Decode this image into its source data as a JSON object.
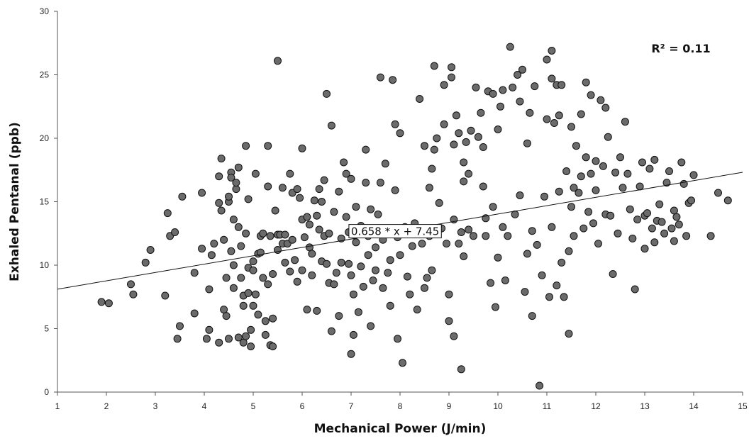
{
  "chart_data": {
    "type": "scatter",
    "xlabel": "Mechanical Power (J/min)",
    "ylabel": "Exhaled Pentanal (ppb)",
    "xlim": [
      1,
      15
    ],
    "ylim": [
      0,
      30
    ],
    "x_ticks": [
      1,
      2,
      3,
      4,
      5,
      6,
      7,
      8,
      9,
      10,
      11,
      12,
      13,
      14,
      15
    ],
    "y_ticks": [
      0,
      5,
      10,
      15,
      20,
      25,
      30
    ],
    "x_tick_labels": [
      "1",
      "2",
      "3",
      "4",
      "5",
      "6",
      "7",
      "8",
      "9",
      "10",
      "11",
      "12",
      "13",
      "14",
      "15"
    ],
    "y_tick_labels": [
      "0",
      "5",
      "10",
      "15",
      "20",
      "25",
      "30"
    ],
    "grid": false,
    "r2_label": "R² = 0.11",
    "fit_equation_label": "0.658 * x + 7.45",
    "fit_line": {
      "slope": 0.658,
      "intercept": 7.45
    },
    "marker_fill": "#6b6b6b",
    "marker_stroke": "#111111",
    "points": [
      [
        1.9,
        7.1
      ],
      [
        2.05,
        7.0
      ],
      [
        2.5,
        8.5
      ],
      [
        2.55,
        7.7
      ],
      [
        2.8,
        10.2
      ],
      [
        2.9,
        11.2
      ],
      [
        3.2,
        7.6
      ],
      [
        3.25,
        14.1
      ],
      [
        3.3,
        12.3
      ],
      [
        3.4,
        12.6
      ],
      [
        3.45,
        4.2
      ],
      [
        3.5,
        5.2
      ],
      [
        3.55,
        15.4
      ],
      [
        3.8,
        6.2
      ],
      [
        3.8,
        9.4
      ],
      [
        3.95,
        15.7
      ],
      [
        3.95,
        11.3
      ],
      [
        4.05,
        4.2
      ],
      [
        4.1,
        4.9
      ],
      [
        4.1,
        8.1
      ],
      [
        4.15,
        10.8
      ],
      [
        4.2,
        11.7
      ],
      [
        4.3,
        3.9
      ],
      [
        4.3,
        14.9
      ],
      [
        4.3,
        17.0
      ],
      [
        4.35,
        18.4
      ],
      [
        4.35,
        14.3
      ],
      [
        4.4,
        6.5
      ],
      [
        4.4,
        12.0
      ],
      [
        4.45,
        6.0
      ],
      [
        4.45,
        9.0
      ],
      [
        4.5,
        4.2
      ],
      [
        4.5,
        15.0
      ],
      [
        4.5,
        15.4
      ],
      [
        4.55,
        17.3
      ],
      [
        4.55,
        16.9
      ],
      [
        4.55,
        11.1
      ],
      [
        4.6,
        8.2
      ],
      [
        4.6,
        13.6
      ],
      [
        4.6,
        10.0
      ],
      [
        4.65,
        16.0
      ],
      [
        4.65,
        16.5
      ],
      [
        4.7,
        13.0
      ],
      [
        4.7,
        17.7
      ],
      [
        4.7,
        4.3
      ],
      [
        4.75,
        11.5
      ],
      [
        4.75,
        9.0
      ],
      [
        4.8,
        3.9
      ],
      [
        4.8,
        7.6
      ],
      [
        4.8,
        6.8
      ],
      [
        4.85,
        12.5
      ],
      [
        4.85,
        19.4
      ],
      [
        4.85,
        4.4
      ],
      [
        4.9,
        9.8
      ],
      [
        4.9,
        7.8
      ],
      [
        4.9,
        15.2
      ],
      [
        4.95,
        4.9
      ],
      [
        4.95,
        3.6
      ],
      [
        5.0,
        10.3
      ],
      [
        5.0,
        9.6
      ],
      [
        5.0,
        6.8
      ],
      [
        5.05,
        17.2
      ],
      [
        5.05,
        7.7
      ],
      [
        5.1,
        6.1
      ],
      [
        5.1,
        10.9
      ],
      [
        5.15,
        12.3
      ],
      [
        5.15,
        11.0
      ],
      [
        5.2,
        9.0
      ],
      [
        5.2,
        12.5
      ],
      [
        5.25,
        4.5
      ],
      [
        5.25,
        5.6
      ],
      [
        5.3,
        19.4
      ],
      [
        5.3,
        8.5
      ],
      [
        5.3,
        16.2
      ],
      [
        5.35,
        3.7
      ],
      [
        5.35,
        12.3
      ],
      [
        5.4,
        3.6
      ],
      [
        5.4,
        5.8
      ],
      [
        5.4,
        9.3
      ],
      [
        5.45,
        14.3
      ],
      [
        5.5,
        12.4
      ],
      [
        5.5,
        11.2
      ],
      [
        5.5,
        26.1
      ],
      [
        5.55,
        12.4
      ],
      [
        5.6,
        16.1
      ],
      [
        5.6,
        11.7
      ],
      [
        5.65,
        10.2
      ],
      [
        5.65,
        12.4
      ],
      [
        5.7,
        11.7
      ],
      [
        5.75,
        9.5
      ],
      [
        5.75,
        17.2
      ],
      [
        5.8,
        15.7
      ],
      [
        5.8,
        12.0
      ],
      [
        5.85,
        10.4
      ],
      [
        5.9,
        16.0
      ],
      [
        5.9,
        8.7
      ],
      [
        5.95,
        15.3
      ],
      [
        6.0,
        19.2
      ],
      [
        6.0,
        13.6
      ],
      [
        6.0,
        9.6
      ],
      [
        6.05,
        12.2
      ],
      [
        6.1,
        13.8
      ],
      [
        6.1,
        6.5
      ],
      [
        6.15,
        13.2
      ],
      [
        6.15,
        11.4
      ],
      [
        6.2,
        10.9
      ],
      [
        6.2,
        9.2
      ],
      [
        6.25,
        15.1
      ],
      [
        6.3,
        13.9
      ],
      [
        6.3,
        6.4
      ],
      [
        6.35,
        16.0
      ],
      [
        6.35,
        12.8
      ],
      [
        6.4,
        15.0
      ],
      [
        6.4,
        10.3
      ],
      [
        6.45,
        16.7
      ],
      [
        6.45,
        12.3
      ],
      [
        6.5,
        23.5
      ],
      [
        6.5,
        10.1
      ],
      [
        6.55,
        8.6
      ],
      [
        6.55,
        12.5
      ],
      [
        6.6,
        21.0
      ],
      [
        6.6,
        4.8
      ],
      [
        6.65,
        14.2
      ],
      [
        6.65,
        8.5
      ],
      [
        6.7,
        9.4
      ],
      [
        6.75,
        15.8
      ],
      [
        6.75,
        6.0
      ],
      [
        6.8,
        12.1
      ],
      [
        6.8,
        10.2
      ],
      [
        6.85,
        18.1
      ],
      [
        6.9,
        17.2
      ],
      [
        6.9,
        13.8
      ],
      [
        6.95,
        12.6
      ],
      [
        6.95,
        10.1
      ],
      [
        7.0,
        16.8
      ],
      [
        7.0,
        9.2
      ],
      [
        7.0,
        3.0
      ],
      [
        7.05,
        4.5
      ],
      [
        7.05,
        7.7
      ],
      [
        7.1,
        14.6
      ],
      [
        7.1,
        11.8
      ],
      [
        7.15,
        6.3
      ],
      [
        7.2,
        13.1
      ],
      [
        7.2,
        9.9
      ],
      [
        7.25,
        8.3
      ],
      [
        7.3,
        19.1
      ],
      [
        7.3,
        16.5
      ],
      [
        7.35,
        12.3
      ],
      [
        7.35,
        10.8
      ],
      [
        7.4,
        14.4
      ],
      [
        7.4,
        5.2
      ],
      [
        7.45,
        8.8
      ],
      [
        7.5,
        11.4
      ],
      [
        7.5,
        9.6
      ],
      [
        7.55,
        14.0
      ],
      [
        7.6,
        24.8
      ],
      [
        7.6,
        16.5
      ],
      [
        7.65,
        12.0
      ],
      [
        7.65,
        8.2
      ],
      [
        7.7,
        18.0
      ],
      [
        7.75,
        9.4
      ],
      [
        7.8,
        10.4
      ],
      [
        7.8,
        6.8
      ],
      [
        7.85,
        24.6
      ],
      [
        7.9,
        21.1
      ],
      [
        7.9,
        15.9
      ],
      [
        7.95,
        12.2
      ],
      [
        7.95,
        4.2
      ],
      [
        8.0,
        20.4
      ],
      [
        8.0,
        10.8
      ],
      [
        8.05,
        2.3
      ],
      [
        8.1,
        13.0
      ],
      [
        8.15,
        9.1
      ],
      [
        8.2,
        7.7
      ],
      [
        8.25,
        11.5
      ],
      [
        8.3,
        13.3
      ],
      [
        8.35,
        6.5
      ],
      [
        8.4,
        23.1
      ],
      [
        8.45,
        11.7
      ],
      [
        8.5,
        19.4
      ],
      [
        8.5,
        8.2
      ],
      [
        8.55,
        9.0
      ],
      [
        8.6,
        16.1
      ],
      [
        8.6,
        12.3
      ],
      [
        8.65,
        17.6
      ],
      [
        8.65,
        9.6
      ],
      [
        8.7,
        25.7
      ],
      [
        8.7,
        19.1
      ],
      [
        8.75,
        20.0
      ],
      [
        8.8,
        14.9
      ],
      [
        8.85,
        12.9
      ],
      [
        8.9,
        24.2
      ],
      [
        8.9,
        21.1
      ],
      [
        8.95,
        11.7
      ],
      [
        9.0,
        5.6
      ],
      [
        9.0,
        7.7
      ],
      [
        9.05,
        25.6
      ],
      [
        9.05,
        24.8
      ],
      [
        9.1,
        19.5
      ],
      [
        9.1,
        13.6
      ],
      [
        9.1,
        4.4
      ],
      [
        9.15,
        21.8
      ],
      [
        9.2,
        20.4
      ],
      [
        9.2,
        11.7
      ],
      [
        9.25,
        1.8
      ],
      [
        9.25,
        12.6
      ],
      [
        9.3,
        18.1
      ],
      [
        9.3,
        16.6
      ],
      [
        9.3,
        10.7
      ],
      [
        9.35,
        19.7
      ],
      [
        9.4,
        17.2
      ],
      [
        9.4,
        12.8
      ],
      [
        9.45,
        20.6
      ],
      [
        9.5,
        12.3
      ],
      [
        9.55,
        24.0
      ],
      [
        9.6,
        20.1
      ],
      [
        9.65,
        22.0
      ],
      [
        9.7,
        16.2
      ],
      [
        9.7,
        19.3
      ],
      [
        9.75,
        12.3
      ],
      [
        9.75,
        13.7
      ],
      [
        9.8,
        23.7
      ],
      [
        9.85,
        8.6
      ],
      [
        9.9,
        23.5
      ],
      [
        9.9,
        14.6
      ],
      [
        9.95,
        6.7
      ],
      [
        10.0,
        20.7
      ],
      [
        10.0,
        10.6
      ],
      [
        10.05,
        22.5
      ],
      [
        10.1,
        23.8
      ],
      [
        10.1,
        13.0
      ],
      [
        10.15,
        8.8
      ],
      [
        10.2,
        12.3
      ],
      [
        10.25,
        27.2
      ],
      [
        10.3,
        24.0
      ],
      [
        10.35,
        14.0
      ],
      [
        10.4,
        25.0
      ],
      [
        10.45,
        22.9
      ],
      [
        10.45,
        15.5
      ],
      [
        10.5,
        25.4
      ],
      [
        10.55,
        7.9
      ],
      [
        10.6,
        19.6
      ],
      [
        10.6,
        10.9
      ],
      [
        10.65,
        22.0
      ],
      [
        10.7,
        12.7
      ],
      [
        10.7,
        6.0
      ],
      [
        10.75,
        24.1
      ],
      [
        10.8,
        11.6
      ],
      [
        10.85,
        0.5
      ],
      [
        10.9,
        9.2
      ],
      [
        10.95,
        15.4
      ],
      [
        11.0,
        26.2
      ],
      [
        11.0,
        21.5
      ],
      [
        11.05,
        7.5
      ],
      [
        11.1,
        24.7
      ],
      [
        11.1,
        26.9
      ],
      [
        11.1,
        13.0
      ],
      [
        11.15,
        21.2
      ],
      [
        11.2,
        24.2
      ],
      [
        11.2,
        8.4
      ],
      [
        11.25,
        21.8
      ],
      [
        11.25,
        15.8
      ],
      [
        11.3,
        24.2
      ],
      [
        11.3,
        10.2
      ],
      [
        11.35,
        7.5
      ],
      [
        11.4,
        17.4
      ],
      [
        11.45,
        11.1
      ],
      [
        11.45,
        4.6
      ],
      [
        11.5,
        20.9
      ],
      [
        11.5,
        14.6
      ],
      [
        11.55,
        16.1
      ],
      [
        11.55,
        12.3
      ],
      [
        11.6,
        19.4
      ],
      [
        11.65,
        15.7
      ],
      [
        11.7,
        21.9
      ],
      [
        11.7,
        17.0
      ],
      [
        11.75,
        12.9
      ],
      [
        11.8,
        18.5
      ],
      [
        11.8,
        24.4
      ],
      [
        11.85,
        14.2
      ],
      [
        11.9,
        23.4
      ],
      [
        11.9,
        17.2
      ],
      [
        11.95,
        13.3
      ],
      [
        12.0,
        18.2
      ],
      [
        12.0,
        15.9
      ],
      [
        12.05,
        11.7
      ],
      [
        12.1,
        23.0
      ],
      [
        12.15,
        17.8
      ],
      [
        12.2,
        22.4
      ],
      [
        12.2,
        14.0
      ],
      [
        12.25,
        20.1
      ],
      [
        12.3,
        13.9
      ],
      [
        12.35,
        9.3
      ],
      [
        12.4,
        17.3
      ],
      [
        12.45,
        12.5
      ],
      [
        12.5,
        18.5
      ],
      [
        12.55,
        16.1
      ],
      [
        12.6,
        21.3
      ],
      [
        12.65,
        17.2
      ],
      [
        12.7,
        14.4
      ],
      [
        12.75,
        12.1
      ],
      [
        12.8,
        8.1
      ],
      [
        12.85,
        13.6
      ],
      [
        12.9,
        16.2
      ],
      [
        12.95,
        18.1
      ],
      [
        13.0,
        13.9
      ],
      [
        13.0,
        11.3
      ],
      [
        13.05,
        14.1
      ],
      [
        13.1,
        17.6
      ],
      [
        13.15,
        12.9
      ],
      [
        13.2,
        18.3
      ],
      [
        13.2,
        11.8
      ],
      [
        13.25,
        13.5
      ],
      [
        13.3,
        14.8
      ],
      [
        13.35,
        13.4
      ],
      [
        13.4,
        12.5
      ],
      [
        13.45,
        16.5
      ],
      [
        13.5,
        17.4
      ],
      [
        13.55,
        12.9
      ],
      [
        13.6,
        14.3
      ],
      [
        13.6,
        11.9
      ],
      [
        13.65,
        13.8
      ],
      [
        13.7,
        13.2
      ],
      [
        13.75,
        18.1
      ],
      [
        13.8,
        16.4
      ],
      [
        13.85,
        12.3
      ],
      [
        13.9,
        14.9
      ],
      [
        13.95,
        15.1
      ],
      [
        14.0,
        17.1
      ],
      [
        14.35,
        12.3
      ],
      [
        14.5,
        15.7
      ],
      [
        14.7,
        15.1
      ]
    ]
  }
}
